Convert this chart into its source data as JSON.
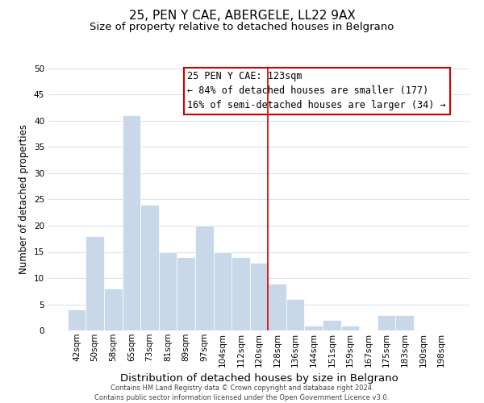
{
  "title": "25, PEN Y CAE, ABERGELE, LL22 9AX",
  "subtitle": "Size of property relative to detached houses in Belgrano",
  "xlabel": "Distribution of detached houses by size in Belgrano",
  "ylabel": "Number of detached properties",
  "footer_line1": "Contains HM Land Registry data © Crown copyright and database right 2024.",
  "footer_line2": "Contains public sector information licensed under the Open Government Licence v3.0.",
  "bin_labels": [
    "42sqm",
    "50sqm",
    "58sqm",
    "65sqm",
    "73sqm",
    "81sqm",
    "89sqm",
    "97sqm",
    "104sqm",
    "112sqm",
    "120sqm",
    "128sqm",
    "136sqm",
    "144sqm",
    "151sqm",
    "159sqm",
    "167sqm",
    "175sqm",
    "183sqm",
    "190sqm",
    "198sqm"
  ],
  "bar_heights": [
    4,
    18,
    8,
    41,
    24,
    15,
    14,
    20,
    15,
    14,
    13,
    9,
    6,
    1,
    2,
    1,
    0,
    3,
    3,
    0,
    0
  ],
  "bar_color": "#c8d8e8",
  "bar_edge_color": "#ffffff",
  "grid_color": "#d8e4f0",
  "vline_x_index": 10.5,
  "vline_color": "#cc0000",
  "annotation_text_line1": "25 PEN Y CAE: 123sqm",
  "annotation_text_line2": "← 84% of detached houses are smaller (177)",
  "annotation_text_line3": "16% of semi-detached houses are larger (34) →",
  "ylim": [
    0,
    50
  ],
  "yticks": [
    0,
    5,
    10,
    15,
    20,
    25,
    30,
    35,
    40,
    45,
    50
  ],
  "title_fontsize": 11,
  "subtitle_fontsize": 9.5,
  "xlabel_fontsize": 9.5,
  "ylabel_fontsize": 8.5,
  "annotation_fontsize": 8.5,
  "tick_fontsize": 7.5,
  "footer_fontsize": 6.0,
  "background_color": "#ffffff"
}
